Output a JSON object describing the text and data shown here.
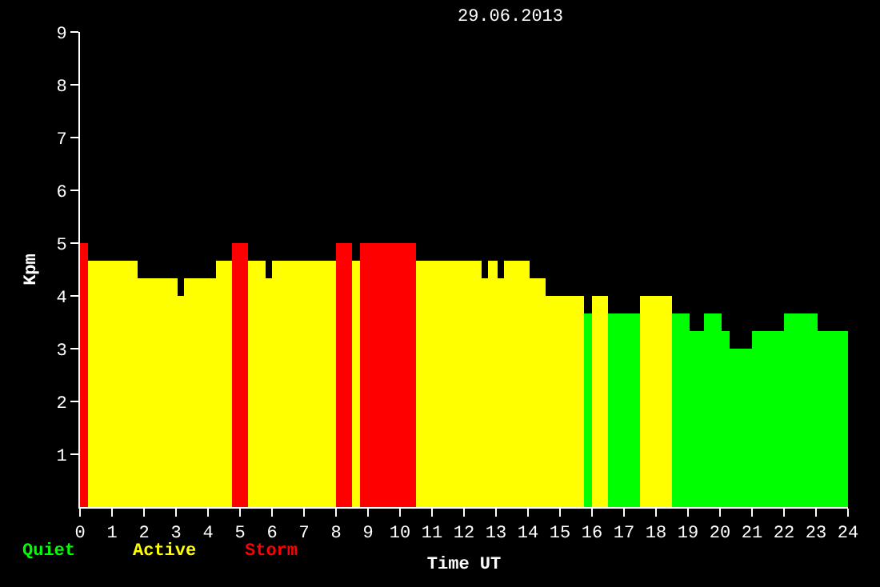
{
  "chart_data": {
    "type": "bar",
    "title": "29.06.2013",
    "xlabel": "Time UT",
    "ylabel": "Kpm",
    "x": [
      0.125,
      1.025,
      2.425,
      3.15,
      3.75,
      4.5,
      5,
      5.525,
      5.9,
      7,
      8.25,
      8.625,
      9.625,
      11.525,
      12.65,
      12.9,
      13.15,
      13.65,
      14.3,
      15.15,
      15.875,
      16.25,
      17,
      18,
      18.775,
      19.275,
      19.775,
      20.175,
      20.65,
      21.5,
      22.525,
      23.525
    ],
    "series": [
      {
        "name": "Quiet",
        "color": "#00ff00",
        "values": [
          null,
          null,
          null,
          null,
          null,
          null,
          null,
          null,
          null,
          null,
          null,
          null,
          null,
          null,
          null,
          null,
          null,
          null,
          null,
          null,
          3.67,
          null,
          3.67,
          null,
          3.67,
          3.33,
          3.67,
          3.33,
          3,
          3.33,
          3.67,
          3.33
        ]
      },
      {
        "name": "Active",
        "color": "#ffff00",
        "values": [
          null,
          4.67,
          4.33,
          4,
          4.33,
          4.67,
          null,
          4.67,
          4.33,
          4.67,
          null,
          4.67,
          null,
          4.67,
          4.33,
          4.67,
          4.33,
          4.67,
          4.33,
          4,
          null,
          4,
          null,
          4,
          null,
          null,
          null,
          null,
          null,
          null,
          null,
          null
        ]
      },
      {
        "name": "Storm",
        "color": "#ff0000",
        "values": [
          5,
          null,
          null,
          null,
          null,
          null,
          5,
          null,
          null,
          null,
          5,
          null,
          5,
          null,
          null,
          null,
          null,
          null,
          null,
          null,
          null,
          null,
          null,
          null,
          null,
          null,
          null,
          null,
          null,
          null,
          null,
          null
        ]
      }
    ],
    "xlim": [
      0,
      24
    ],
    "xticks": [
      0,
      1,
      2,
      3,
      4,
      5,
      6,
      7,
      8,
      9,
      10,
      11,
      12,
      13,
      14,
      15,
      16,
      17,
      18,
      19,
      20,
      21,
      22,
      23,
      24
    ],
    "ylim": [
      0,
      9
    ],
    "yticks": [
      1,
      2,
      3,
      4,
      5,
      6,
      7,
      8,
      9
    ],
    "legend": "bottom left",
    "grid": false
  }
}
